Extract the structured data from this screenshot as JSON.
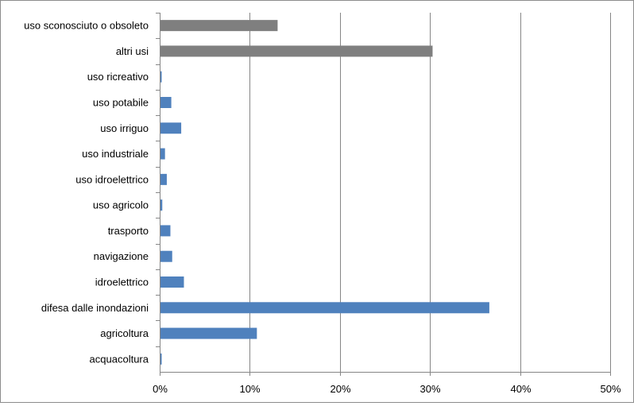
{
  "chart_data": {
    "type": "bar",
    "orientation": "horizontal",
    "categories": [
      "uso sconosciuto o obsoleto",
      "altri usi",
      "uso ricreativo",
      "uso potabile",
      "uso irriguo",
      "uso industriale",
      "uso idroelettrico",
      "uso agricolo",
      "trasporto",
      "navigazione",
      "idroelettrico",
      "difesa dalle inondazioni",
      "agricoltura",
      "acquacoltura"
    ],
    "values": [
      13.0,
      30.2,
      0.1,
      1.2,
      2.3,
      0.5,
      0.7,
      0.2,
      1.1,
      1.3,
      2.6,
      36.5,
      10.7,
      0.1
    ],
    "bar_colors": [
      "#7f7f7f",
      "#7f7f7f",
      "#4f81bd",
      "#4f81bd",
      "#4f81bd",
      "#4f81bd",
      "#4f81bd",
      "#4f81bd",
      "#4f81bd",
      "#4f81bd",
      "#4f81bd",
      "#4f81bd",
      "#4f81bd",
      "#4f81bd"
    ],
    "x_ticks": [
      "0%",
      "10%",
      "20%",
      "30%",
      "40%",
      "50%"
    ],
    "xlim": [
      0,
      50
    ],
    "grid": "vertical",
    "title": "",
    "xlabel": "",
    "ylabel": ""
  }
}
